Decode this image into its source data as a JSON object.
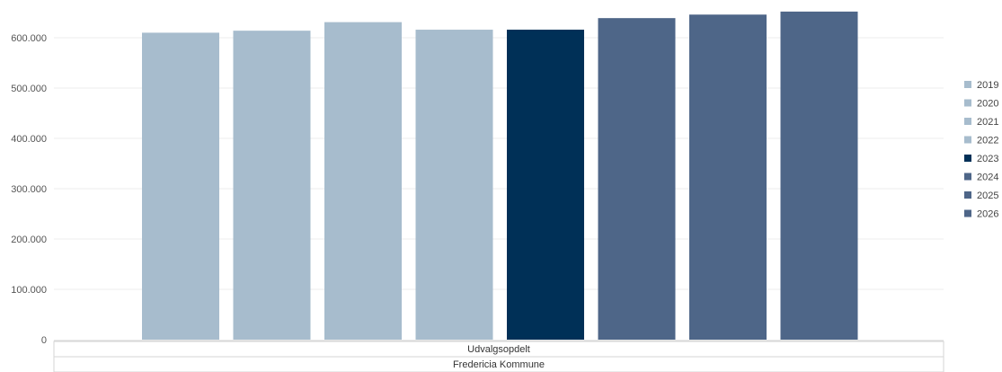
{
  "chart_data": {
    "type": "bar",
    "categories": [
      "Udvalgsopdelt"
    ],
    "category_groups": [
      "Fredericia Kommune"
    ],
    "series": [
      {
        "name": "2019",
        "values": [
          610000
        ],
        "color": "#a7bccd"
      },
      {
        "name": "2020",
        "values": [
          614000
        ],
        "color": "#a7bccd"
      },
      {
        "name": "2021",
        "values": [
          631000
        ],
        "color": "#a7bccd"
      },
      {
        "name": "2022",
        "values": [
          616000
        ],
        "color": "#a7bccd"
      },
      {
        "name": "2023",
        "values": [
          616000
        ],
        "color": "#003057"
      },
      {
        "name": "2024",
        "values": [
          639000
        ],
        "color": "#4e6688"
      },
      {
        "name": "2025",
        "values": [
          646000
        ],
        "color": "#4e6688"
      },
      {
        "name": "2026",
        "values": [
          652000
        ],
        "color": "#4e6688"
      }
    ],
    "y_ticks": [
      "0",
      "100.000",
      "200.000",
      "300.000",
      "400.000",
      "500.000",
      "600.000"
    ],
    "y_tick_values": [
      0,
      100000,
      200000,
      300000,
      400000,
      500000,
      600000
    ],
    "ylim": [
      0,
      660000
    ],
    "grid": true,
    "legend_position": "right"
  }
}
